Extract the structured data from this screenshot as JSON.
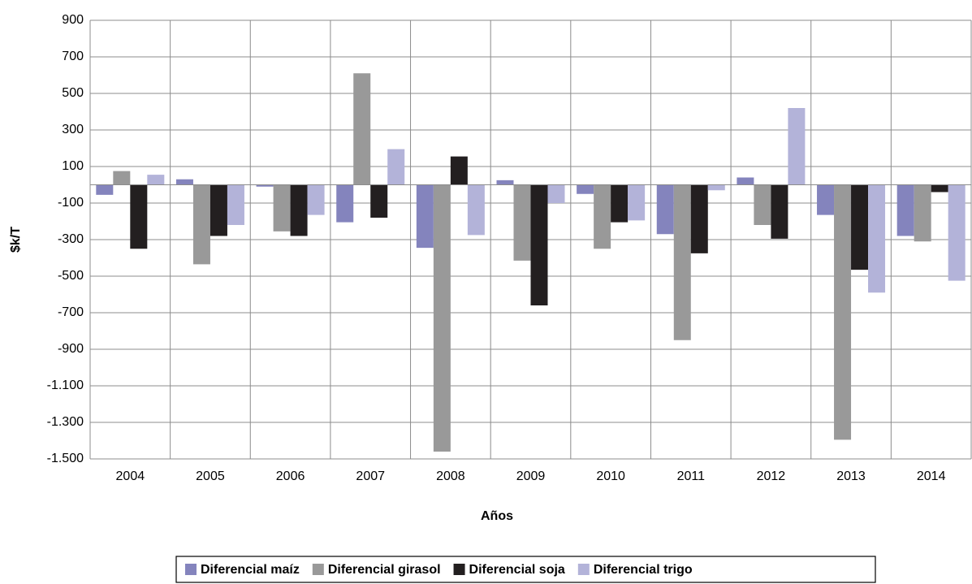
{
  "chart_data": {
    "type": "bar",
    "y_label": "$k/T",
    "x_label": "Años",
    "categories": [
      "2004",
      "2005",
      "2006",
      "2007",
      "2008",
      "2009",
      "2010",
      "2011",
      "2012",
      "2013",
      "2014"
    ],
    "series": [
      {
        "name": "Diferencial maíz",
        "color": "#8484bd",
        "values": [
          -55,
          30,
          -10,
          -205,
          -345,
          25,
          -50,
          -270,
          40,
          -165,
          -280
        ]
      },
      {
        "name": "Diferencial girasol",
        "color": "#999999",
        "values": [
          75,
          -435,
          -255,
          610,
          -1460,
          -415,
          -350,
          -850,
          -220,
          -1395,
          -310
        ]
      },
      {
        "name": "Diferencial soja",
        "color": "#231f20",
        "values": [
          -350,
          -280,
          -280,
          -180,
          155,
          -660,
          -205,
          -375,
          -295,
          -465,
          -40
        ]
      },
      {
        "name": "Diferencial trigo",
        "color": "#b3b3d9",
        "values": [
          55,
          -220,
          -165,
          195,
          -275,
          -100,
          -195,
          -30,
          420,
          -590,
          -525
        ]
      }
    ],
    "ylim": [
      -1500,
      900
    ],
    "yticks": [
      900,
      700,
      500,
      300,
      100,
      -100,
      -300,
      -500,
      -700,
      -900,
      {
        "value": -1100,
        "label": "-1.100"
      },
      {
        "value": -1300,
        "label": "-1.300"
      },
      {
        "value": -1500,
        "label": "-1.500"
      }
    ],
    "grid": true
  }
}
